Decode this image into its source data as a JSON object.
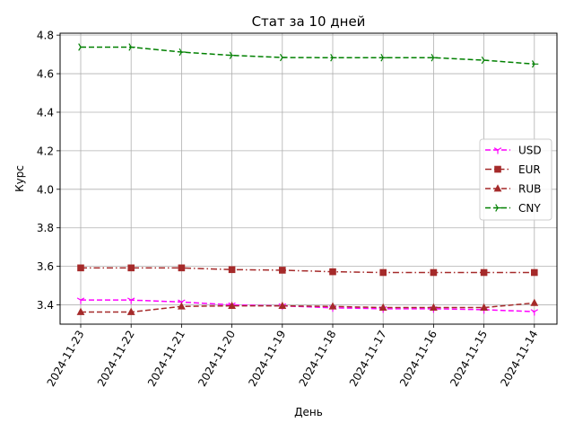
{
  "chart_data": {
    "type": "line",
    "title": "Стат за 10 дней",
    "xlabel": "День",
    "ylabel": "Курс",
    "categories": [
      "2024-11-23",
      "2024-11-22",
      "2024-11-21",
      "2024-11-20",
      "2024-11-19",
      "2024-11-18",
      "2024-11-17",
      "2024-11-16",
      "2024-11-15",
      "2024-11-14"
    ],
    "ylim": [
      3.3,
      4.81
    ],
    "yticks": [
      "3.4",
      "3.6",
      "3.8",
      "4.0",
      "4.2",
      "4.4",
      "4.6",
      "4.8"
    ],
    "grid": true,
    "legend_position": "center-right",
    "series": [
      {
        "name": "USD",
        "color": "#ff00ff",
        "dash": "dashed",
        "marker": "tri-down",
        "values": [
          3.425,
          3.425,
          3.415,
          3.4,
          3.395,
          3.385,
          3.38,
          3.38,
          3.375,
          3.365
        ]
      },
      {
        "name": "EUR",
        "color": "#a52a2a",
        "dash": "dashdot",
        "marker": "square",
        "values": [
          3.592,
          3.592,
          3.592,
          3.583,
          3.58,
          3.572,
          3.568,
          3.568,
          3.568,
          3.568
        ]
      },
      {
        "name": "RUB",
        "color": "#a52a2a",
        "dash": "dashed",
        "marker": "triangle",
        "values": [
          3.363,
          3.363,
          3.392,
          3.395,
          3.395,
          3.392,
          3.386,
          3.386,
          3.386,
          3.41
        ]
      },
      {
        "name": "CNY",
        "color": "#008000",
        "dash": "dashed",
        "marker": "tri-right",
        "values": [
          4.738,
          4.738,
          4.712,
          4.695,
          4.684,
          4.683,
          4.683,
          4.683,
          4.67,
          4.65
        ]
      }
    ]
  }
}
